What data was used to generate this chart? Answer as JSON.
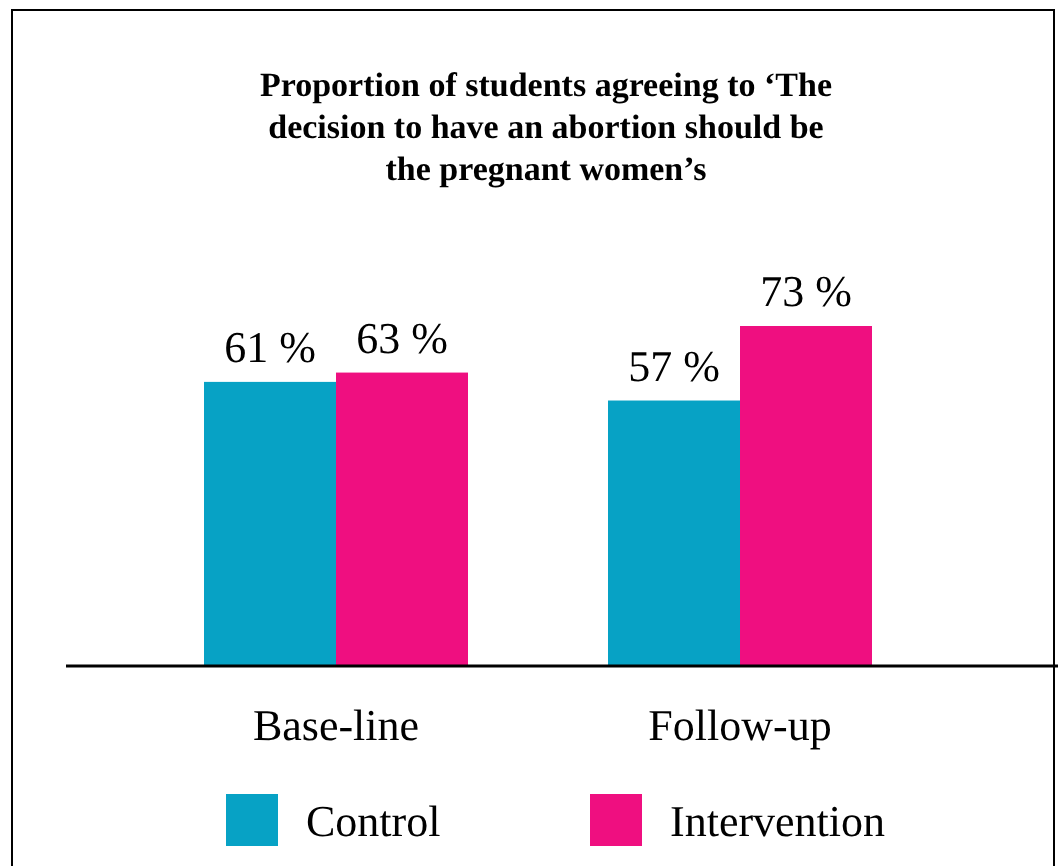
{
  "chart_data": {
    "type": "bar",
    "title": "Proportion of students agreeing to ‘The decision to have an abortion should be the pregnant women’s",
    "categories": [
      "Base-line",
      "Follow-up"
    ],
    "series": [
      {
        "name": "Control",
        "color": "#07a2c5",
        "values": [
          61,
          57
        ],
        "value_labels": [
          "61 %",
          "57 %"
        ]
      },
      {
        "name": "Intervention",
        "color": "#ef0f80",
        "values": [
          63,
          73
        ],
        "value_labels": [
          "63 %",
          "73 %"
        ]
      }
    ],
    "legend": "bottom"
  }
}
